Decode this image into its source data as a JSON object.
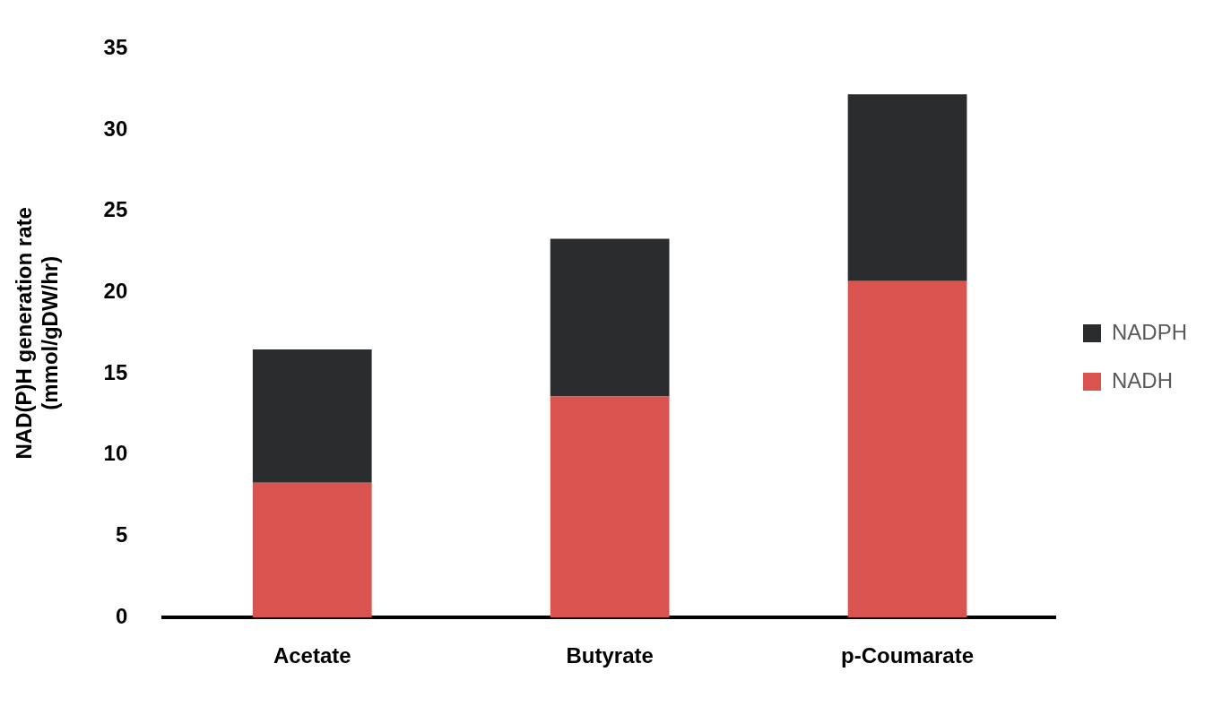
{
  "chart_data": {
    "type": "bar",
    "stacked": true,
    "ylabel": "NAD(P)H generation rate\n(mmol/gDW/hr)",
    "categories": [
      "Acetate",
      "Butyrate",
      "p-Coumarate"
    ],
    "series": [
      {
        "name": "NADH",
        "color": "#d9534f",
        "values": [
          8.3,
          13.6,
          20.7
        ]
      },
      {
        "name": "NADPH",
        "color": "#2b2c2e",
        "values": [
          8.2,
          9.7,
          11.5
        ]
      }
    ],
    "ylim": [
      0,
      35
    ],
    "yticks": [
      0,
      5,
      10,
      15,
      20,
      25,
      30,
      35
    ],
    "grid": false,
    "legend": "right"
  }
}
